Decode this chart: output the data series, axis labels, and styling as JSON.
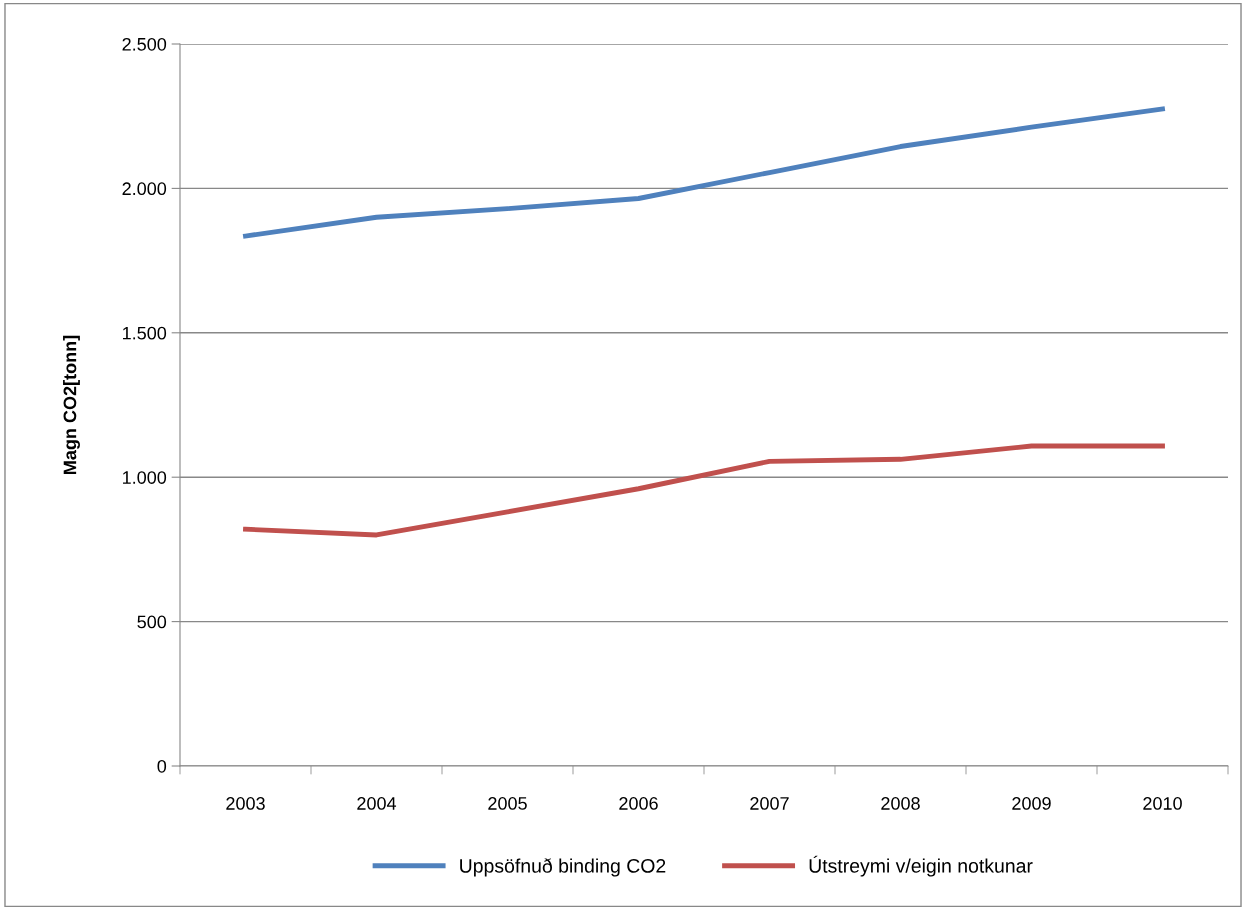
{
  "chart_data": {
    "type": "line",
    "ylabel": "Magn CO2[tonn]",
    "categories": [
      "2003",
      "2004",
      "2005",
      "2006",
      "2007",
      "2008",
      "2009",
      "2010"
    ],
    "series": [
      {
        "name": "Uppsöfnuð binding CO2",
        "color": "#4f81bd",
        "values": [
          1835,
          1900,
          1930,
          1965,
          2055,
          2145,
          2212,
          2275
        ]
      },
      {
        "name": "Útstreymi v/eigin notkunar",
        "color": "#c0504d",
        "values": [
          820,
          800,
          880,
          960,
          1055,
          1062,
          1108,
          1108
        ]
      }
    ],
    "ylim": [
      0,
      2500
    ],
    "yticks": [
      {
        "value": 0,
        "label": "0"
      },
      {
        "value": 500,
        "label": "500"
      },
      {
        "value": 1000,
        "label": "1.000"
      },
      {
        "value": 1500,
        "label": "1.500"
      },
      {
        "value": 2000,
        "label": "2.000"
      },
      {
        "value": 2500,
        "label": "2.500"
      }
    ],
    "grid": "y",
    "legend": "bottom",
    "marker": "none",
    "line_style": "solid"
  }
}
